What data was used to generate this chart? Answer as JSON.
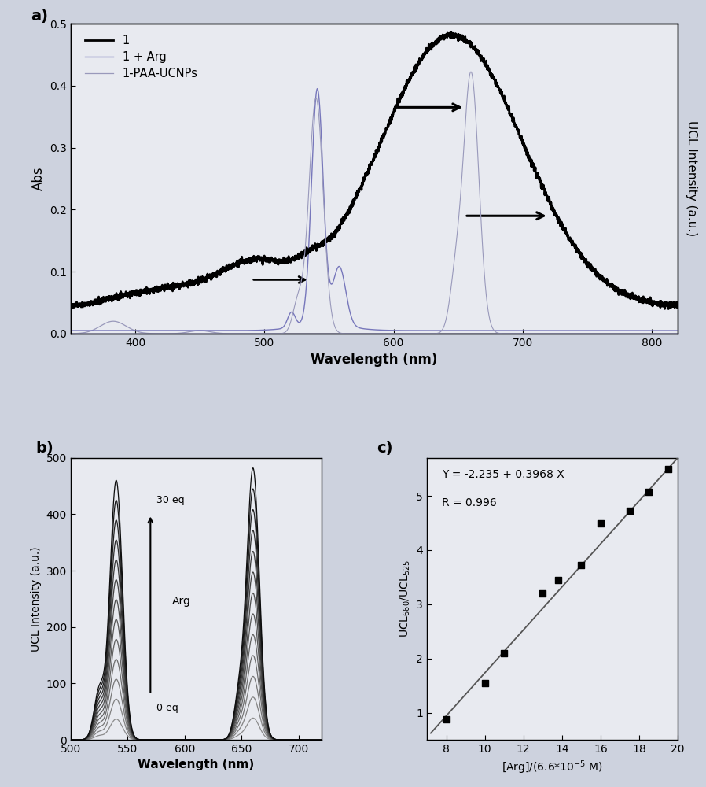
{
  "bg_color": "#cdd2de",
  "axes_bg": "#e8eaf0",
  "panel_a": {
    "xlim": [
      350,
      820
    ],
    "ylim_left": [
      0.0,
      0.5
    ],
    "ylim_right": [
      0,
      500
    ],
    "xlabel": "Wavelength (nm)",
    "ylabel_left": "Abs",
    "ylabel_right": "UCL Intensity (a.u.)",
    "xticks": [
      400,
      500,
      600,
      700,
      800
    ],
    "yticks_left": [
      0.0,
      0.1,
      0.2,
      0.3,
      0.4,
      0.5
    ]
  },
  "panel_b": {
    "xlim": [
      500,
      720
    ],
    "ylim": [
      0,
      500
    ],
    "xlabel": "Wavelength (nm)",
    "ylabel": "UCL Intensity (a.u.)",
    "xticks": [
      500,
      550,
      600,
      650,
      700
    ],
    "yticks": [
      0,
      100,
      200,
      300,
      400,
      500
    ]
  },
  "panel_c": {
    "xlabel": "[Arg]/(6.6*10$^{-5}$ M)",
    "ylabel": "UCL$_{660}$/UCL$_{525}$",
    "xlim": [
      7,
      20
    ],
    "ylim": [
      0.5,
      5.7
    ],
    "xticks": [
      8,
      10,
      12,
      14,
      16,
      18,
      20
    ],
    "yticks": [
      1,
      2,
      3,
      4,
      5
    ],
    "equation": "Y = -2.235 + 0.3968 X",
    "r_value": "R = 0.996",
    "slope": 0.3968,
    "intercept": -2.235,
    "scatter_x": [
      8.0,
      10.0,
      11.0,
      13.0,
      13.8,
      15.0,
      16.0,
      17.5,
      18.5,
      19.5
    ],
    "scatter_y": [
      0.88,
      1.55,
      2.1,
      3.2,
      3.45,
      3.72,
      4.5,
      4.73,
      5.07,
      5.5
    ]
  }
}
